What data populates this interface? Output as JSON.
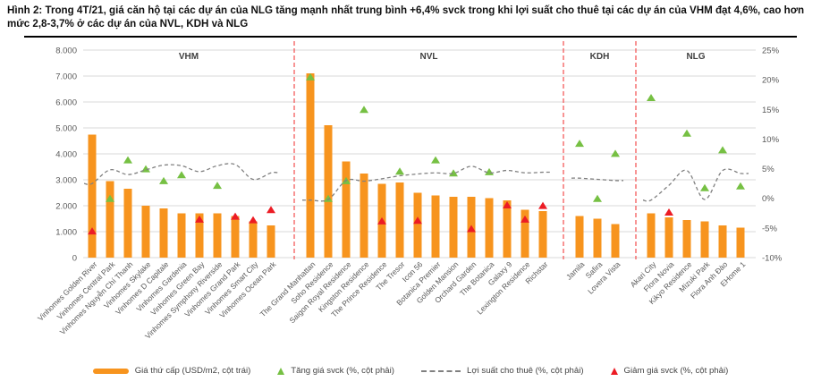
{
  "title": "Hình 2: Trong 4T/21, giá căn hộ tại các dự án của NLG tăng mạnh nhất trung bình +6,4% svck trong khi lợi suất cho thuê tại các dự án của VHM đạt 4,6%, cao hơn mức 2,8-3,7% ở các dự án của NVL, KDH và NLG",
  "legend": {
    "bars_label": "Giá thứ cấp (USD/m2, cột trái)",
    "up_label": "Tăng giá svck (%, cột phải)",
    "yield_label": "Lợi suất cho thuê (%, cột phải)",
    "down_label": "Giảm giá svck (%, cột phải)"
  },
  "colors": {
    "bar_orange": "#F7941E",
    "up_green": "#76C043",
    "down_red": "#EC1C24",
    "yield_gray": "#808080",
    "separator_red": "#F45B5B",
    "grid": "#D9D9D9",
    "axis_text": "#595959",
    "header_text": "#3F3F3F"
  },
  "chart_data": {
    "type": "bar",
    "title": "",
    "xlabel": "",
    "ylabel_left": "USD/m2",
    "ylabel_right": "%",
    "ylim_left": [
      0,
      8000
    ],
    "ylim_right_pct": [
      -10,
      25
    ],
    "grid": true,
    "legend_position": "bottom",
    "left_axis_ticks": [
      "8.000",
      "7.000",
      "6.000",
      "5.000",
      "4.000",
      "3.000",
      "2.000",
      "1.000",
      "0"
    ],
    "right_axis_ticks": [
      "25%",
      "20%",
      "15%",
      "10%",
      "5%",
      "0%",
      "-5%",
      "-10%"
    ],
    "series_note": "bars = secondary price USD/m2 (left axis); triangles = YoY price change % (right axis); dashed line = rental yield % (right axis)",
    "groups": [
      {
        "name": "VHM",
        "projects": [
          {
            "name": "Vinhomes Golden River",
            "price_usd_m2": 4750,
            "change_dir": "down",
            "change_pct": -5.5,
            "yield_pct": 2.5
          },
          {
            "name": "Vinhomes Central Park",
            "price_usd_m2": 2950,
            "change_dir": "up",
            "change_pct": 0.0,
            "yield_pct": 4.8
          },
          {
            "name": "Vinhomes Nguyễn Chí Thanh",
            "price_usd_m2": 2650,
            "change_dir": "up",
            "change_pct": 6.5,
            "yield_pct": 4.0
          },
          {
            "name": "Vinhomes Skylake",
            "price_usd_m2": 2000,
            "change_dir": "up",
            "change_pct": 5.0,
            "yield_pct": 4.8
          },
          {
            "name": "Vinhomes D Capitale",
            "price_usd_m2": 1900,
            "change_dir": "up",
            "change_pct": 3.0,
            "yield_pct": 5.6
          },
          {
            "name": "Vinhomes Gardenia",
            "price_usd_m2": 1700,
            "change_dir": "up",
            "change_pct": 4.0,
            "yield_pct": 5.5
          },
          {
            "name": "Vinhomes Green Bay",
            "price_usd_m2": 1700,
            "change_dir": "down",
            "change_pct": -3.5,
            "yield_pct": 4.5
          },
          {
            "name": "Vinhomes Symphony Riverside",
            "price_usd_m2": 1700,
            "change_dir": "up",
            "change_pct": 2.2,
            "yield_pct": 5.5
          },
          {
            "name": "Vinhomes Grand Park",
            "price_usd_m2": 1600,
            "change_dir": "down",
            "change_pct": -3.0,
            "yield_pct": 5.7
          },
          {
            "name": "Vinhomes Smart City",
            "price_usd_m2": 1400,
            "change_dir": "down",
            "change_pct": -3.6,
            "yield_pct": 3.2
          },
          {
            "name": "Vinhomes Ocean Park",
            "price_usd_m2": 1250,
            "change_dir": "down",
            "change_pct": -1.9,
            "yield_pct": 4.3
          }
        ]
      },
      {
        "name": "NVL",
        "projects": [
          {
            "name": "The Grand Manhattan",
            "price_usd_m2": 7100,
            "change_dir": "up",
            "change_pct": 20.5,
            "yield_pct": -0.3
          },
          {
            "name": "Soho Residence",
            "price_usd_m2": 5100,
            "change_dir": "up",
            "change_pct": 0.0,
            "yield_pct": -0.2
          },
          {
            "name": "Saigon Royal Residence",
            "price_usd_m2": 3700,
            "change_dir": "up",
            "change_pct": 3.0,
            "yield_pct": 3.0
          },
          {
            "name": "Kingston Residence",
            "price_usd_m2": 3250,
            "change_dir": "up",
            "change_pct": 15.0,
            "yield_pct": 2.9
          },
          {
            "name": "The Prince Residence",
            "price_usd_m2": 2850,
            "change_dir": "down",
            "change_pct": -3.8,
            "yield_pct": 3.3
          },
          {
            "name": "The Tresor",
            "price_usd_m2": 2900,
            "change_dir": "up",
            "change_pct": 4.6,
            "yield_pct": 3.8
          },
          {
            "name": "Icon 56",
            "price_usd_m2": 2500,
            "change_dir": "down",
            "change_pct": -3.7,
            "yield_pct": 4.1
          },
          {
            "name": "Botanica Premier",
            "price_usd_m2": 2400,
            "change_dir": "up",
            "change_pct": 6.5,
            "yield_pct": 4.3
          },
          {
            "name": "Golden Mansion",
            "price_usd_m2": 2350,
            "change_dir": "up",
            "change_pct": 4.3,
            "yield_pct": 4.2
          },
          {
            "name": "Orchard Garden",
            "price_usd_m2": 2350,
            "change_dir": "down",
            "change_pct": -5.1,
            "yield_pct": 5.4
          },
          {
            "name": "The Botanica",
            "price_usd_m2": 2300,
            "change_dir": "up",
            "change_pct": 4.5,
            "yield_pct": 4.3
          },
          {
            "name": "Galaxy 9",
            "price_usd_m2": 2200,
            "change_dir": "down",
            "change_pct": -1.1,
            "yield_pct": 4.7
          },
          {
            "name": "Lexington Residence",
            "price_usd_m2": 1850,
            "change_dir": "down",
            "change_pct": -3.5,
            "yield_pct": 4.3
          },
          {
            "name": "Richstar",
            "price_usd_m2": 1800,
            "change_dir": "down",
            "change_pct": -1.2,
            "yield_pct": 4.4
          }
        ]
      },
      {
        "name": "KDH",
        "projects": [
          {
            "name": "Jamila",
            "price_usd_m2": 1600,
            "change_dir": "up",
            "change_pct": 9.3,
            "yield_pct": 3.4
          },
          {
            "name": "Safira",
            "price_usd_m2": 1500,
            "change_dir": "up",
            "change_pct": 0.0,
            "yield_pct": 3.2
          },
          {
            "name": "Lovera Vista",
            "price_usd_m2": 1300,
            "change_dir": "up",
            "change_pct": 7.6,
            "yield_pct": 3.0
          }
        ]
      },
      {
        "name": "NLG",
        "projects": [
          {
            "name": "Akari City",
            "price_usd_m2": 1700,
            "change_dir": "up",
            "change_pct": 17.0,
            "yield_pct": -0.3
          },
          {
            "name": "Flora Novia",
            "price_usd_m2": 1550,
            "change_dir": "down",
            "change_pct": -2.3,
            "yield_pct": 2.2
          },
          {
            "name": "Kikyo Residence",
            "price_usd_m2": 1450,
            "change_dir": "up",
            "change_pct": 11.0,
            "yield_pct": 4.7
          },
          {
            "name": "Mizuki Park",
            "price_usd_m2": 1400,
            "change_dir": "up",
            "change_pct": 1.8,
            "yield_pct": -0.2
          },
          {
            "name": "Flora Anh Đào",
            "price_usd_m2": 1250,
            "change_dir": "up",
            "change_pct": 8.2,
            "yield_pct": 4.7
          },
          {
            "name": "EHome 1",
            "price_usd_m2": 1150,
            "change_dir": "up",
            "change_pct": 2.1,
            "yield_pct": 4.2
          }
        ]
      }
    ]
  }
}
